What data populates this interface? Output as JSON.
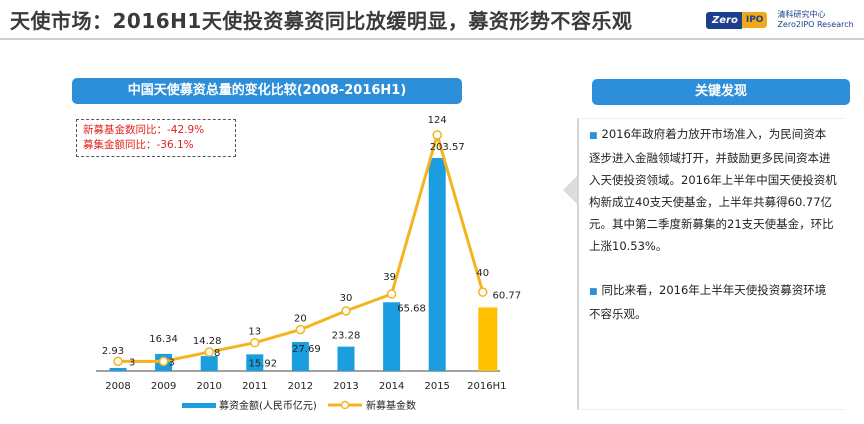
{
  "header": {
    "title": "天使市场：2016H1天使投资募资同比放缓明显，募资形势不容乐观",
    "logo": {
      "brand": "Zero",
      "brand_sub": "IPO",
      "name_cn": "清科研究中心",
      "name_en": "Zero2IPO Research"
    }
  },
  "chart_banner": "中国天使募资总量的变化比较(2008-2016H1)",
  "callout": {
    "line1": "新募基金数同比：-42.9%",
    "line2": "募集金额同比：-36.1%"
  },
  "key_findings": {
    "title": "关键发现",
    "paragraphs": [
      "2016年政府着力放开市场准入，为民间资本逐步进入金融领域打开，并鼓励更多民间资本进入天使投资领域。2016年上半年中国天使投资机构新成立40支天使基金，上半年共募得60.77亿元。其中第二季度新募集的21支天使基金，环比上涨10.53%。",
      "同比来看，2016年上半年天使投资募资环境不容乐观。"
    ]
  },
  "colors": {
    "bar": "#1a9ee0",
    "bar_highlight": "#ffc000",
    "line": "#f5b41e",
    "banner": "#2d8fd9"
  },
  "chart_data": {
    "type": "bar+line",
    "categories": [
      "2008",
      "2009",
      "2010",
      "2011",
      "2012",
      "2013",
      "2014",
      "2015",
      "2016H1"
    ],
    "series": [
      {
        "name": "募资金额(人民币亿元)",
        "type": "bar",
        "values": [
          2.93,
          16.34,
          14.28,
          15.92,
          27.69,
          23.28,
          65.68,
          203.57,
          60.77
        ],
        "axis": "left"
      },
      {
        "name": "新募基金数",
        "type": "line",
        "values": [
          3,
          3,
          8,
          13,
          20,
          30,
          39,
          124,
          40
        ],
        "axis": "right"
      }
    ],
    "highlight_category": "2016H1",
    "legend_position": "bottom-center",
    "grid": false
  }
}
